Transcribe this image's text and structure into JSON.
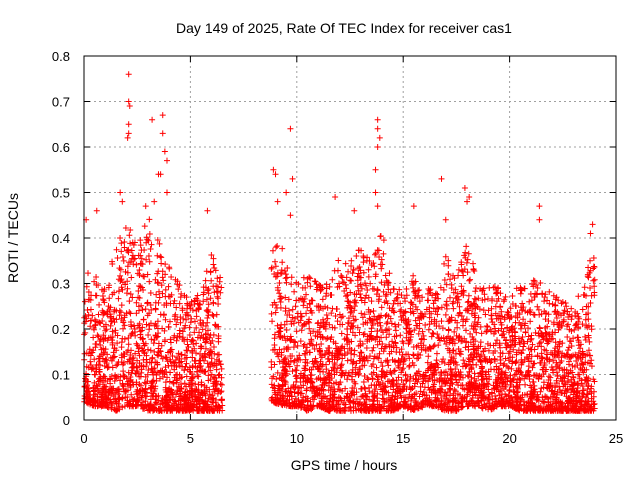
{
  "chart_data": {
    "type": "scatter",
    "title": "Day 149 of 2025, Rate Of TEC Index for receiver cas1",
    "xlabel": "GPS time / hours",
    "ylabel": "ROTI / TECUs",
    "xlim": [
      0,
      25
    ],
    "ylim": [
      0,
      0.8
    ],
    "x_ticks": [
      "0",
      "5",
      "10",
      "15",
      "20",
      "25"
    ],
    "y_ticks": [
      "0",
      "0.1",
      "0.2",
      "0.3",
      "0.4",
      "0.5",
      "0.6",
      "0.7",
      "0.8"
    ],
    "grid": true,
    "marker": "+",
    "color": "#ff0000",
    "data_gap_hours": [
      6.5,
      8.8
    ],
    "envelope": {
      "x": [
        0,
        0.5,
        1,
        1.5,
        2,
        2.5,
        3,
        3.5,
        4,
        4.5,
        5,
        5.5,
        6,
        6.5,
        8.8,
        9.5,
        10,
        10.5,
        11,
        11.5,
        12,
        12.5,
        13,
        13.5,
        14,
        14.5,
        15,
        15.5,
        16,
        16.5,
        17,
        17.5,
        18,
        18.5,
        19,
        19.5,
        20,
        20.5,
        21,
        21.5,
        22,
        22.5,
        23,
        23.5,
        24
      ],
      "typical_max": [
        0.32,
        0.33,
        0.3,
        0.38,
        0.44,
        0.38,
        0.45,
        0.4,
        0.34,
        0.3,
        0.26,
        0.28,
        0.38,
        0.3,
        0.44,
        0.36,
        0.3,
        0.32,
        0.3,
        0.3,
        0.36,
        0.35,
        0.38,
        0.35,
        0.42,
        0.3,
        0.28,
        0.32,
        0.3,
        0.28,
        0.36,
        0.32,
        0.4,
        0.3,
        0.3,
        0.3,
        0.28,
        0.3,
        0.32,
        0.3,
        0.28,
        0.26,
        0.25,
        0.3,
        0.4
      ],
      "typical_min": [
        0.04,
        0.03,
        0.03,
        0.02,
        0.03,
        0.03,
        0.02,
        0.02,
        0.02,
        0.02,
        0.02,
        0.02,
        0.02,
        0.02,
        0.04,
        0.03,
        0.03,
        0.02,
        0.03,
        0.02,
        0.02,
        0.02,
        0.02,
        0.02,
        0.02,
        0.02,
        0.03,
        0.02,
        0.03,
        0.03,
        0.02,
        0.02,
        0.03,
        0.03,
        0.02,
        0.03,
        0.03,
        0.02,
        0.02,
        0.02,
        0.02,
        0.02,
        0.02,
        0.02,
        0.02
      ]
    },
    "outliers": [
      {
        "x": 0.1,
        "y": 0.44
      },
      {
        "x": 0.6,
        "y": 0.46
      },
      {
        "x": 1.7,
        "y": 0.5
      },
      {
        "x": 1.8,
        "y": 0.48
      },
      {
        "x": 2.1,
        "y": 0.76
      },
      {
        "x": 2.1,
        "y": 0.7
      },
      {
        "x": 2.15,
        "y": 0.69
      },
      {
        "x": 2.1,
        "y": 0.65
      },
      {
        "x": 2.1,
        "y": 0.63
      },
      {
        "x": 2.05,
        "y": 0.62
      },
      {
        "x": 3.2,
        "y": 0.66
      },
      {
        "x": 3.7,
        "y": 0.67
      },
      {
        "x": 3.7,
        "y": 0.63
      },
      {
        "x": 3.8,
        "y": 0.59
      },
      {
        "x": 3.9,
        "y": 0.57
      },
      {
        "x": 3.6,
        "y": 0.54
      },
      {
        "x": 3.5,
        "y": 0.54
      },
      {
        "x": 3.9,
        "y": 0.5
      },
      {
        "x": 3.3,
        "y": 0.48
      },
      {
        "x": 2.9,
        "y": 0.47
      },
      {
        "x": 5.8,
        "y": 0.46
      },
      {
        "x": 8.9,
        "y": 0.55
      },
      {
        "x": 9.0,
        "y": 0.54
      },
      {
        "x": 9.1,
        "y": 0.48
      },
      {
        "x": 9.7,
        "y": 0.64
      },
      {
        "x": 9.8,
        "y": 0.53
      },
      {
        "x": 9.7,
        "y": 0.45
      },
      {
        "x": 9.5,
        "y": 0.5
      },
      {
        "x": 11.8,
        "y": 0.49
      },
      {
        "x": 12.7,
        "y": 0.46
      },
      {
        "x": 13.8,
        "y": 0.66
      },
      {
        "x": 13.8,
        "y": 0.64
      },
      {
        "x": 13.9,
        "y": 0.62
      },
      {
        "x": 13.8,
        "y": 0.6
      },
      {
        "x": 13.7,
        "y": 0.55
      },
      {
        "x": 13.7,
        "y": 0.5
      },
      {
        "x": 13.8,
        "y": 0.47
      },
      {
        "x": 15.5,
        "y": 0.47
      },
      {
        "x": 16.8,
        "y": 0.53
      },
      {
        "x": 17.0,
        "y": 0.44
      },
      {
        "x": 17.9,
        "y": 0.51
      },
      {
        "x": 18.0,
        "y": 0.48
      },
      {
        "x": 18.1,
        "y": 0.49
      },
      {
        "x": 21.4,
        "y": 0.47
      },
      {
        "x": 21.4,
        "y": 0.44
      },
      {
        "x": 23.9,
        "y": 0.43
      },
      {
        "x": 23.8,
        "y": 0.41
      }
    ]
  }
}
